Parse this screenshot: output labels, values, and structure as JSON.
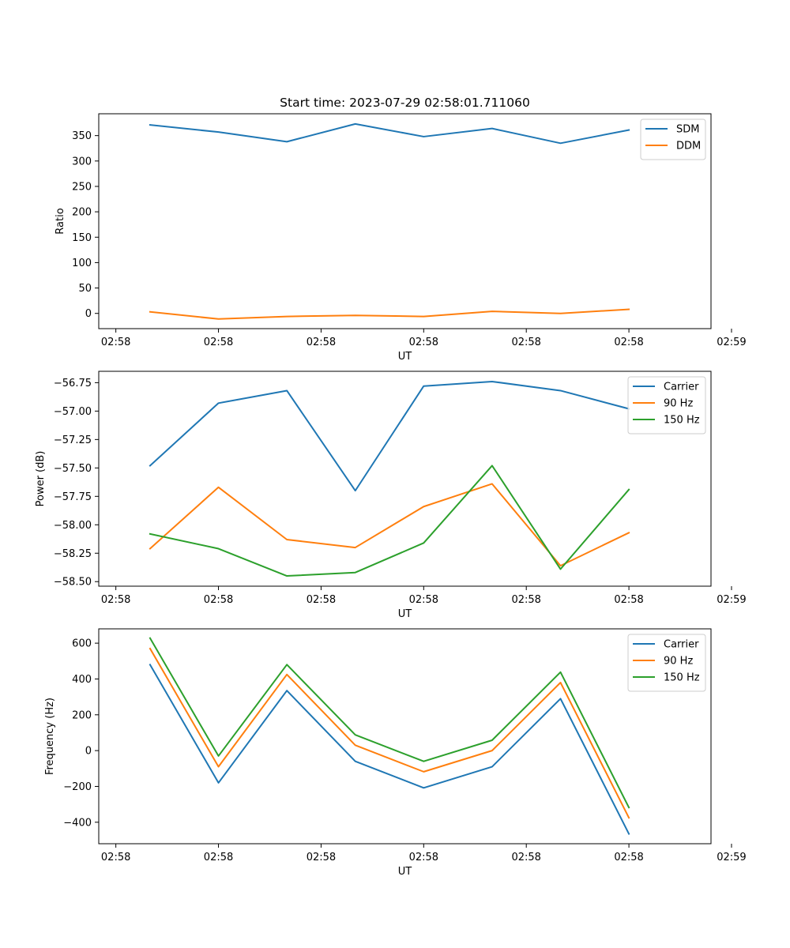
{
  "chart_data": [
    {
      "type": "line",
      "title": "Start time: 2023-07-29 02:58:01.711060",
      "xlabel": "UT",
      "ylabel": "Ratio",
      "x": [
        1,
        2,
        3,
        4,
        5,
        6,
        7,
        8
      ],
      "xlim": [
        0.25,
        9.2
      ],
      "x_ticks": [
        0.5,
        2,
        3.5,
        5,
        6.5,
        8,
        9.5
      ],
      "x_tick_labels": [
        "02:58",
        "02:58",
        "02:58",
        "02:58",
        "02:58",
        "02:58",
        "02:59"
      ],
      "ylim": [
        -30,
        393
      ],
      "y_ticks": [
        0,
        50,
        100,
        150,
        200,
        250,
        300,
        350
      ],
      "y_tick_labels": [
        "0",
        "50",
        "100",
        "150",
        "200",
        "250",
        "300",
        "350"
      ],
      "legend_position": "top-right",
      "series": [
        {
          "name": "SDM",
          "color": "#1f77b4",
          "values": [
            371,
            357,
            338,
            373,
            348,
            364,
            335,
            361
          ]
        },
        {
          "name": "DDM",
          "color": "#ff7f0e",
          "values": [
            3,
            -11,
            -6,
            -4,
            -6,
            4,
            0,
            8
          ]
        }
      ]
    },
    {
      "type": "line",
      "title": "",
      "xlabel": "UT",
      "ylabel": "Power (dB)",
      "x": [
        1,
        2,
        3,
        4,
        5,
        6,
        7,
        8
      ],
      "xlim": [
        0.25,
        9.2
      ],
      "x_ticks": [
        0.5,
        2,
        3.5,
        5,
        6.5,
        8,
        9.5
      ],
      "x_tick_labels": [
        "02:58",
        "02:58",
        "02:58",
        "02:58",
        "02:58",
        "02:58",
        "02:59"
      ],
      "ylim": [
        -58.54,
        -56.65
      ],
      "y_ticks": [
        -58.5,
        -58.25,
        -58.0,
        -57.75,
        -57.5,
        -57.25,
        -57.0,
        -56.75
      ],
      "y_tick_labels": [
        "−58.50",
        "−58.25",
        "−58.00",
        "−57.75",
        "−57.50",
        "−57.25",
        "−57.00",
        "−56.75"
      ],
      "legend_position": "top-right",
      "series": [
        {
          "name": "Carrier",
          "color": "#1f77b4",
          "values": [
            -57.48,
            -56.93,
            -56.82,
            -57.7,
            -56.78,
            -56.74,
            -56.82,
            -56.98
          ]
        },
        {
          "name": "90 Hz",
          "color": "#ff7f0e",
          "values": [
            -58.21,
            -57.67,
            -58.13,
            -58.2,
            -57.84,
            -57.64,
            -58.36,
            -58.07
          ]
        },
        {
          "name": "150 Hz",
          "color": "#2ca02c",
          "values": [
            -58.08,
            -58.21,
            -58.45,
            -58.42,
            -58.16,
            -57.48,
            -58.39,
            -57.69
          ]
        }
      ]
    },
    {
      "type": "line",
      "title": "",
      "xlabel": "UT",
      "ylabel": "Frequency (Hz)",
      "x": [
        1,
        2,
        3,
        4,
        5,
        6,
        7,
        8
      ],
      "xlim": [
        0.25,
        9.2
      ],
      "x_ticks": [
        0.5,
        2,
        3.5,
        5,
        6.5,
        8,
        9.5
      ],
      "x_tick_labels": [
        "02:58",
        "02:58",
        "02:58",
        "02:58",
        "02:58",
        "02:58",
        "02:59"
      ],
      "ylim": [
        -520,
        680
      ],
      "y_ticks": [
        -400,
        -200,
        0,
        200,
        400,
        600
      ],
      "y_tick_labels": [
        "−400",
        "−200",
        "0",
        "200",
        "400",
        "600"
      ],
      "legend_position": "top-right",
      "series": [
        {
          "name": "Carrier",
          "color": "#1f77b4",
          "values": [
            480,
            -180,
            335,
            -60,
            -208,
            -90,
            290,
            -465
          ]
        },
        {
          "name": "90 Hz",
          "color": "#ff7f0e",
          "values": [
            570,
            -90,
            425,
            30,
            -118,
            0,
            380,
            -375
          ]
        },
        {
          "name": "150 Hz",
          "color": "#2ca02c",
          "values": [
            628,
            -30,
            480,
            88,
            -60,
            58,
            438,
            -318
          ]
        }
      ]
    }
  ]
}
